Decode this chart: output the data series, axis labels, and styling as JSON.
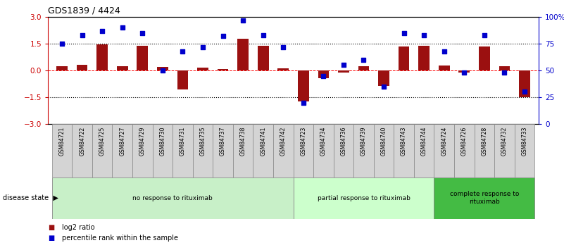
{
  "title": "GDS1839 / 4424",
  "samples": [
    "GSM84721",
    "GSM84722",
    "GSM84725",
    "GSM84727",
    "GSM84729",
    "GSM84730",
    "GSM84731",
    "GSM84735",
    "GSM84737",
    "GSM84738",
    "GSM84741",
    "GSM84742",
    "GSM84723",
    "GSM84734",
    "GSM84736",
    "GSM84739",
    "GSM84740",
    "GSM84743",
    "GSM84744",
    "GSM84724",
    "GSM84726",
    "GSM84728",
    "GSM84732",
    "GSM84733"
  ],
  "log2_ratio": [
    0.22,
    0.3,
    1.45,
    0.22,
    1.4,
    0.18,
    -1.05,
    0.15,
    0.08,
    1.78,
    1.4,
    0.13,
    -1.72,
    -0.45,
    -0.12,
    0.25,
    -0.85,
    1.35,
    1.4,
    0.28,
    -0.1,
    1.35,
    0.25,
    -1.5
  ],
  "percentile_rank": [
    75,
    83,
    87,
    90,
    85,
    50,
    68,
    72,
    82,
    97,
    83,
    72,
    20,
    45,
    55,
    60,
    35,
    85,
    83,
    68,
    48,
    83,
    48,
    30
  ],
  "groups": [
    {
      "label": "no response to rituximab",
      "start": 0,
      "end": 12,
      "color": "#c8f0c8"
    },
    {
      "label": "partial response to rituximab",
      "start": 12,
      "end": 19,
      "color": "#ccffcc"
    },
    {
      "label": "complete response to\nrituximab",
      "start": 19,
      "end": 24,
      "color": "#44bb44"
    }
  ],
  "bar_color": "#9B1010",
  "dot_color": "#0000CC",
  "left_axis_color": "#CC0000",
  "right_axis_color": "#0000CC",
  "ylim_left": [
    -3,
    3
  ],
  "ylim_right": [
    0,
    100
  ],
  "yticks_left": [
    -3,
    -1.5,
    0,
    1.5,
    3
  ],
  "yticks_right": [
    0,
    25,
    50,
    75,
    100
  ],
  "ytick_labels_right": [
    "0",
    "25",
    "50",
    "75",
    "100%"
  ],
  "legend_items": [
    {
      "label": "log2 ratio",
      "color": "#9B1010"
    },
    {
      "label": "percentile rank within the sample",
      "color": "#0000CC"
    }
  ],
  "disease_state_label": "disease state"
}
